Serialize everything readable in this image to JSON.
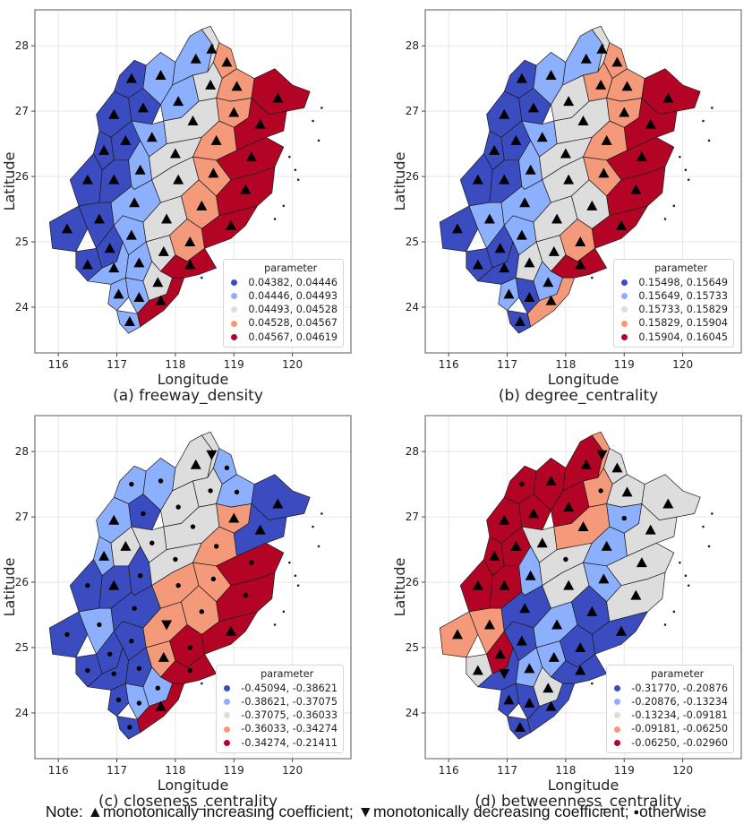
{
  "figure": {
    "note": {
      "prefix": "Note: ",
      "items": [
        {
          "symbol": "▲",
          "text": "monotonically increasing coefficient; "
        },
        {
          "symbol": "▼",
          "text": "monotonically decreasing coefficient; "
        },
        {
          "symbol": "●",
          "text": "otherwise"
        }
      ]
    },
    "class_colors": [
      "#3b4cc0",
      "#8db0fe",
      "#dddddd",
      "#f49a7b",
      "#b40426"
    ]
  },
  "chart_data": [
    {
      "type": "heatmap",
      "subtype": "choropleth",
      "title": "(a) freeway_density",
      "xlabel": "Longitude",
      "ylabel": "Latitude",
      "xticks": [
        116,
        117,
        118,
        119,
        120
      ],
      "yticks": [
        24,
        25,
        26,
        27,
        28
      ],
      "xlim": [
        115.6,
        121.0
      ],
      "ylim": [
        23.3,
        28.55
      ],
      "grid": true,
      "legend": {
        "title": "parameter",
        "placement": "bottom-right",
        "entries": [
          "0.04382, 0.04446",
          "0.04446, 0.04493",
          "0.04493, 0.04528",
          "0.04528, 0.04567",
          "0.04567, 0.04619"
        ]
      },
      "region_classes": [
        0,
        0,
        0,
        0,
        0,
        0,
        0,
        0,
        0,
        0,
        0,
        1,
        1,
        1,
        1,
        1,
        1,
        1,
        1,
        1,
        1,
        1,
        1,
        2,
        2,
        2,
        2,
        2,
        2,
        2,
        2,
        3,
        3,
        3,
        3,
        3,
        3,
        3,
        4,
        4,
        4,
        4,
        4,
        4,
        4
      ],
      "region_markers": [
        "up",
        "up",
        "up",
        "up",
        "up",
        "up",
        "up",
        "up",
        "up",
        "up",
        "up",
        "up",
        "up",
        "up",
        "up",
        "up",
        "up",
        "up",
        "up",
        "up",
        "up",
        "up",
        "up",
        "up",
        "up",
        "up",
        "up",
        "up",
        "up",
        "up",
        "up",
        "up",
        "up",
        "up",
        "up",
        "up",
        "up",
        "up",
        "up",
        "up",
        "up",
        "up",
        "up",
        "up",
        "up"
      ]
    },
    {
      "type": "heatmap",
      "subtype": "choropleth",
      "title": "(b) degree_centrality",
      "xlabel": "Longitude",
      "ylabel": "Latitude",
      "xticks": [
        116,
        117,
        118,
        119,
        120
      ],
      "yticks": [
        24,
        25,
        26,
        27,
        28
      ],
      "xlim": [
        115.6,
        121.0
      ],
      "ylim": [
        23.3,
        28.55
      ],
      "grid": true,
      "legend": {
        "title": "parameter",
        "placement": "bottom-right",
        "entries": [
          "0.15498, 0.15649",
          "0.15649, 0.15733",
          "0.15733, 0.15829",
          "0.15829, 0.15904",
          "0.15904, 0.16045"
        ]
      },
      "region_classes": [
        0,
        0,
        0,
        0,
        0,
        0,
        0,
        0,
        1,
        0,
        0,
        1,
        1,
        2,
        1,
        1,
        1,
        1,
        0,
        2,
        1,
        0,
        0,
        2,
        3,
        2,
        2,
        2,
        2,
        2,
        1,
        3,
        3,
        3,
        3,
        3,
        2,
        3,
        4,
        4,
        4,
        4,
        4,
        4,
        3
      ],
      "region_markers": [
        "up",
        "up",
        "up",
        "up",
        "up",
        "up",
        "up",
        "up",
        "up",
        "up",
        "up",
        "up",
        "up",
        "up",
        "up",
        "up",
        "up",
        "up",
        "up",
        "up",
        "up",
        "up",
        "up",
        "up",
        "up",
        "up",
        "up",
        "up",
        "up",
        "up",
        "up",
        "up",
        "up",
        "up",
        "up",
        "up",
        "up",
        "up",
        "up",
        "up",
        "up",
        "up",
        "up",
        "up",
        "up"
      ]
    },
    {
      "type": "heatmap",
      "subtype": "choropleth",
      "title": "(c) closeness_centrality",
      "xlabel": "Longitude",
      "ylabel": "Latitude",
      "xticks": [
        116,
        117,
        118,
        119,
        120
      ],
      "yticks": [
        24,
        25,
        26,
        27,
        28
      ],
      "xlim": [
        115.6,
        121.0
      ],
      "ylim": [
        23.3,
        28.55
      ],
      "grid": true,
      "legend": {
        "title": "parameter",
        "placement": "bottom-right",
        "entries": [
          "-0.45094, -0.38621",
          "-0.38621, -0.37075",
          "-0.37075, -0.36033",
          "-0.36033, -0.34274",
          "-0.34274, -0.21411"
        ]
      },
      "region_classes": [
        1,
        1,
        0,
        1,
        2,
        0,
        0,
        0,
        1,
        0,
        0,
        1,
        2,
        2,
        2,
        0,
        0,
        0,
        0,
        0,
        0,
        1,
        0,
        2,
        2,
        2,
        2,
        3,
        3,
        3,
        1,
        1,
        1,
        3,
        3,
        3,
        3,
        4,
        0,
        0,
        4,
        4,
        4,
        4,
        4
      ],
      "region_markers": [
        "dot",
        "up",
        "dot",
        "up",
        "up",
        "dot",
        "up",
        "dot",
        "dot",
        "dot",
        "dot",
        "dot",
        "up",
        "dot",
        "dot",
        "dot",
        "dot",
        "dot",
        "dot",
        "dot",
        "dot",
        "dot",
        "dot",
        "down",
        "dot",
        "dot",
        "dot",
        "dot",
        "down",
        "up",
        "dot",
        "dot",
        "dot",
        "up",
        "dot",
        "dot",
        "dot",
        "dot",
        "up",
        "up",
        "dot",
        "dot",
        "up",
        "dot",
        "up"
      ]
    },
    {
      "type": "heatmap",
      "subtype": "choropleth",
      "title": "(d) betweenness_centrality",
      "xlabel": "Longitude",
      "ylabel": "Latitude",
      "xticks": [
        116,
        117,
        118,
        119,
        120
      ],
      "yticks": [
        24,
        25,
        26,
        27,
        28
      ],
      "xlim": [
        115.6,
        121.0
      ],
      "ylim": [
        23.3,
        28.55
      ],
      "grid": true,
      "legend": {
        "title": "parameter",
        "placement": "bottom-right",
        "entries": [
          "-0.31770, -0.20876",
          "-0.20876, -0.13234",
          "-0.13234, -0.09181",
          "-0.09181, -0.06250",
          "-0.06250, -0.02960"
        ]
      },
      "region_classes": [
        4,
        4,
        4,
        4,
        4,
        4,
        4,
        3,
        3,
        2,
        4,
        4,
        4,
        4,
        2,
        1,
        0,
        0,
        0,
        1,
        0,
        0,
        0,
        3,
        3,
        3,
        2,
        2,
        1,
        1,
        2,
        2,
        2,
        1,
        1,
        1,
        0,
        0,
        2,
        2,
        2,
        2,
        0,
        0,
        0
      ],
      "region_markers": [
        "dot",
        "up",
        "up",
        "up",
        "up",
        "up",
        "up",
        "up",
        "up",
        "up",
        "up",
        "up",
        "up",
        "up",
        "up",
        "up",
        "up",
        "up",
        "down",
        "up",
        "up",
        "up",
        "up",
        "down",
        "dot",
        "up",
        "dot",
        "up",
        "up",
        "up",
        "up",
        "up",
        "up",
        "dot",
        "up",
        "up",
        "up",
        "up",
        "up",
        "up",
        "up",
        "up",
        "up",
        "up",
        "up"
      ]
    }
  ]
}
